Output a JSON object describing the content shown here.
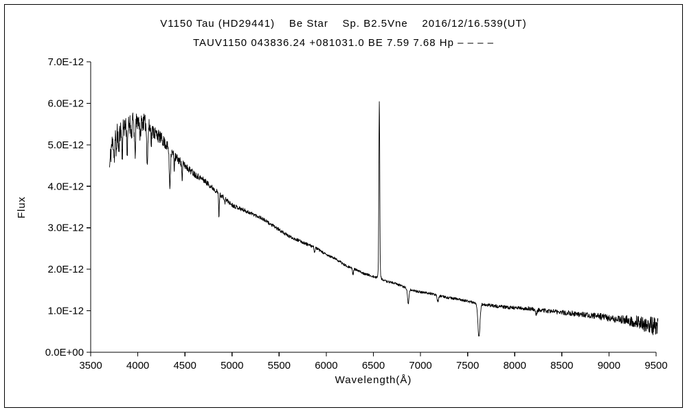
{
  "chart_data": {
    "type": "line",
    "title": "V1150 Tau (HD29441)    Be Star    Sp. B2.5Vne    2016/12/16.539(UT)",
    "subtitle": "TAUV1150 043836.24 +081031.0 BE 7.59 7.68 Hp – – – –",
    "xlabel": "Wavelength(Å)",
    "ylabel": "Flux",
    "xlim": [
      3500,
      9500
    ],
    "ylim": [
      0,
      7e-12
    ],
    "x_ticks": [
      3500,
      4000,
      4500,
      5000,
      5500,
      6000,
      6500,
      7000,
      7500,
      8000,
      8500,
      9000,
      9500
    ],
    "y_tick_labels": [
      "0.0E+00",
      "1.0E-12",
      "2.0E-12",
      "3.0E-12",
      "4.0E-12",
      "5.0E-12",
      "6.0E-12",
      "7.0E-12"
    ],
    "y_tick_step_1e12": 1,
    "y_max_1e12": 7,
    "line_color": "#000000",
    "background_color": "#ffffff",
    "grid": false,
    "legend": "none",
    "x_start": 3700,
    "x_end": 9520,
    "sample_step": 2.5,
    "noise_seed": 11,
    "continuum_1e12": [
      [
        3700,
        4.45
      ],
      [
        3720,
        4.95
      ],
      [
        3750,
        5.15
      ],
      [
        3800,
        5.3
      ],
      [
        3850,
        5.45
      ],
      [
        3900,
        5.5
      ],
      [
        3950,
        5.55
      ],
      [
        4000,
        5.58
      ],
      [
        4050,
        5.55
      ],
      [
        4100,
        5.5
      ],
      [
        4150,
        5.35
      ],
      [
        4200,
        5.25
      ],
      [
        4250,
        5.15
      ],
      [
        4300,
        5.0
      ],
      [
        4350,
        4.85
      ],
      [
        4400,
        4.7
      ],
      [
        4450,
        4.6
      ],
      [
        4500,
        4.5
      ],
      [
        4600,
        4.3
      ],
      [
        4700,
        4.15
      ],
      [
        4800,
        3.95
      ],
      [
        4900,
        3.75
      ],
      [
        5000,
        3.55
      ],
      [
        5100,
        3.45
      ],
      [
        5200,
        3.35
      ],
      [
        5300,
        3.25
      ],
      [
        5400,
        3.1
      ],
      [
        5500,
        2.95
      ],
      [
        5600,
        2.8
      ],
      [
        5700,
        2.7
      ],
      [
        5800,
        2.6
      ],
      [
        5900,
        2.5
      ],
      [
        6000,
        2.35
      ],
      [
        6100,
        2.25
      ],
      [
        6200,
        2.1
      ],
      [
        6300,
        2.0
      ],
      [
        6400,
        1.9
      ],
      [
        6500,
        1.82
      ],
      [
        6600,
        1.73
      ],
      [
        6700,
        1.68
      ],
      [
        6800,
        1.6
      ],
      [
        6900,
        1.5
      ],
      [
        7000,
        1.45
      ],
      [
        7100,
        1.42
      ],
      [
        7200,
        1.36
      ],
      [
        7300,
        1.31
      ],
      [
        7400,
        1.28
      ],
      [
        7500,
        1.23
      ],
      [
        7600,
        1.18
      ],
      [
        7700,
        1.14
      ],
      [
        7800,
        1.11
      ],
      [
        7900,
        1.09
      ],
      [
        8000,
        1.07
      ],
      [
        8150,
        1.05
      ],
      [
        8300,
        1.01
      ],
      [
        8450,
        0.97
      ],
      [
        8600,
        0.94
      ],
      [
        8750,
        0.9
      ],
      [
        8900,
        0.86
      ],
      [
        9050,
        0.81
      ],
      [
        9200,
        0.76
      ],
      [
        9350,
        0.7
      ],
      [
        9450,
        0.65
      ],
      [
        9520,
        0.6
      ]
    ],
    "noise_amp_1e12": [
      [
        3700,
        0.28
      ],
      [
        3900,
        0.25
      ],
      [
        4100,
        0.2
      ],
      [
        4300,
        0.13
      ],
      [
        4500,
        0.09
      ],
      [
        4800,
        0.06
      ],
      [
        5200,
        0.045
      ],
      [
        5800,
        0.035
      ],
      [
        6400,
        0.03
      ],
      [
        7000,
        0.028
      ],
      [
        7600,
        0.034
      ],
      [
        8000,
        0.045
      ],
      [
        8400,
        0.055
      ],
      [
        8800,
        0.07
      ],
      [
        9100,
        0.1
      ],
      [
        9300,
        0.16
      ],
      [
        9520,
        0.24
      ]
    ],
    "features": [
      {
        "name": "H12-absorption",
        "center": 3750,
        "width": 6,
        "amp_1e12": -0.45
      },
      {
        "name": "H11-absorption",
        "center": 3771,
        "width": 5,
        "amp_1e12": -0.4
      },
      {
        "name": "H10-absorption",
        "center": 3798,
        "width": 6,
        "amp_1e12": -0.5
      },
      {
        "name": "H9-absorption",
        "center": 3835,
        "width": 7,
        "amp_1e12": -0.6
      },
      {
        "name": "H8-absorption",
        "center": 3889,
        "width": 8,
        "amp_1e12": -0.7
      },
      {
        "name": "CaII-K-absorption",
        "center": 3933,
        "width": 5,
        "amp_1e12": -0.4
      },
      {
        "name": "H-epsilon-absorption",
        "center": 3970,
        "width": 8,
        "amp_1e12": -0.8
      },
      {
        "name": "HeI-4026-absorption",
        "center": 4026,
        "width": 6,
        "amp_1e12": -0.45
      },
      {
        "name": "H-delta-absorption",
        "center": 4101,
        "width": 9,
        "amp_1e12": -0.9
      },
      {
        "name": "HeI-4144-absorption",
        "center": 4144,
        "width": 5,
        "amp_1e12": -0.3
      },
      {
        "name": "H-gamma-absorption",
        "center": 4340,
        "width": 9,
        "amp_1e12": -0.85
      },
      {
        "name": "HeI-4387-absorption",
        "center": 4387,
        "width": 5,
        "amp_1e12": -0.3
      },
      {
        "name": "HeI-4471-absorption",
        "center": 4471,
        "width": 6,
        "amp_1e12": -0.4
      },
      {
        "name": "H-beta-absorption",
        "center": 4861,
        "width": 5.5,
        "amp_1e12": -0.55
      },
      {
        "name": "HeI-4922-absorption",
        "center": 4922,
        "width": 5,
        "amp_1e12": -0.12
      },
      {
        "name": "HeI-5876-NaD-absorption",
        "center": 5876,
        "width": 6,
        "amp_1e12": -0.12
      },
      {
        "name": "telluric-6280-absorption",
        "center": 6283,
        "width": 8,
        "amp_1e12": -0.13
      },
      {
        "name": "H-alpha-emission",
        "center": 6563,
        "width": 6.5,
        "amp_1e12": 4.1
      },
      {
        "name": "H-alpha-wings-emission",
        "center": 6563,
        "width": 18,
        "amp_1e12": 0.2
      },
      {
        "name": "telluric-O2-B-band-absorption",
        "center": 6870,
        "width": 11,
        "amp_1e12": -0.36
      },
      {
        "name": "telluric-H2O-7180-absorption",
        "center": 7185,
        "width": 11,
        "amp_1e12": -0.14
      },
      {
        "name": "telluric-O2-A-band-absorption",
        "center": 7620,
        "width": 16,
        "amp_1e12": -0.78
      },
      {
        "name": "telluric-H2O-8220-absorption",
        "center": 8227,
        "width": 14,
        "amp_1e12": -0.1
      }
    ]
  }
}
